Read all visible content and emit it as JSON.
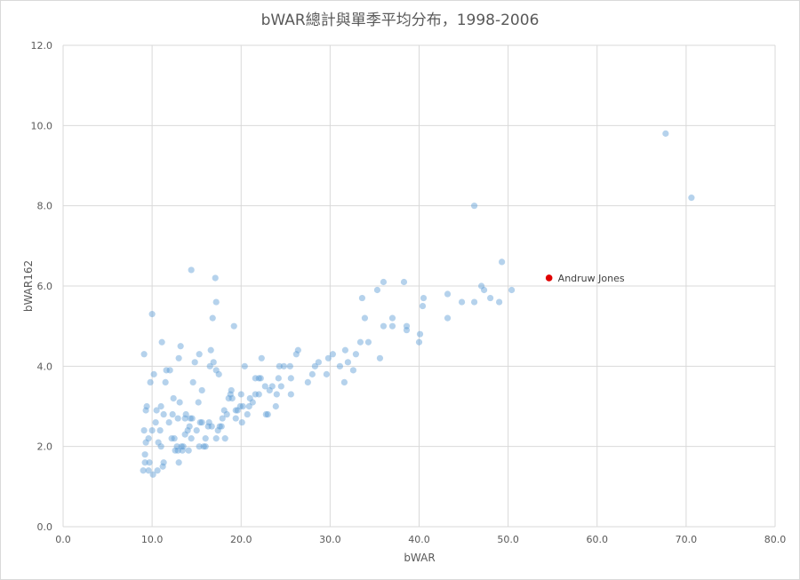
{
  "chart_data": {
    "type": "scatter",
    "title": "bWAR總計與單季平均分布，1998-2006",
    "xlabel": "bWAR",
    "ylabel": "bWAR162",
    "xlim": [
      0,
      80
    ],
    "ylim": [
      0,
      12
    ],
    "x_ticks": [
      "0.0",
      "10.0",
      "20.0",
      "30.0",
      "40.0",
      "50.0",
      "60.0",
      "70.0",
      "80.0"
    ],
    "y_ticks": [
      "0.0",
      "2.0",
      "4.0",
      "6.0",
      "8.0",
      "10.0",
      "12.0"
    ],
    "grid": true,
    "colors": {
      "points": "#5b9bd5",
      "highlight": "#e00000"
    },
    "highlight": {
      "label": "Andruw Jones",
      "x": 54.6,
      "y": 6.2
    },
    "points": [
      [
        67.7,
        9.8
      ],
      [
        70.6,
        8.2
      ],
      [
        46.2,
        8.0
      ],
      [
        49.3,
        6.6
      ],
      [
        50.4,
        5.9
      ],
      [
        49.0,
        5.6
      ],
      [
        48.0,
        5.7
      ],
      [
        47.3,
        5.9
      ],
      [
        47.0,
        6.0
      ],
      [
        46.2,
        5.6
      ],
      [
        44.8,
        5.6
      ],
      [
        43.2,
        5.8
      ],
      [
        43.2,
        5.2
      ],
      [
        40.5,
        5.7
      ],
      [
        40.4,
        5.5
      ],
      [
        40.1,
        4.8
      ],
      [
        40.0,
        4.6
      ],
      [
        38.6,
        5.0
      ],
      [
        38.6,
        4.9
      ],
      [
        38.3,
        6.1
      ],
      [
        37.0,
        5.2
      ],
      [
        37.0,
        5.0
      ],
      [
        36.0,
        6.1
      ],
      [
        35.3,
        5.9
      ],
      [
        36.0,
        5.0
      ],
      [
        35.6,
        4.2
      ],
      [
        34.3,
        4.6
      ],
      [
        33.9,
        5.2
      ],
      [
        33.6,
        5.7
      ],
      [
        33.4,
        4.6
      ],
      [
        32.9,
        4.3
      ],
      [
        32.6,
        3.9
      ],
      [
        32.0,
        4.1
      ],
      [
        31.7,
        4.4
      ],
      [
        31.6,
        3.6
      ],
      [
        31.1,
        4.0
      ],
      [
        30.3,
        4.3
      ],
      [
        29.8,
        4.2
      ],
      [
        29.6,
        3.8
      ],
      [
        28.7,
        4.1
      ],
      [
        28.3,
        4.0
      ],
      [
        28.0,
        3.8
      ],
      [
        27.5,
        3.6
      ],
      [
        26.4,
        4.4
      ],
      [
        26.2,
        4.3
      ],
      [
        25.5,
        4.0
      ],
      [
        25.6,
        3.7
      ],
      [
        25.6,
        3.3
      ],
      [
        24.8,
        4.0
      ],
      [
        24.5,
        3.5
      ],
      [
        24.2,
        3.7
      ],
      [
        24.0,
        3.3
      ],
      [
        23.9,
        3.0
      ],
      [
        23.5,
        3.5
      ],
      [
        23.2,
        3.4
      ],
      [
        23.0,
        2.8
      ],
      [
        22.7,
        3.5
      ],
      [
        22.3,
        4.2
      ],
      [
        22.2,
        3.7
      ],
      [
        22.0,
        3.3
      ],
      [
        21.6,
        3.7
      ],
      [
        21.6,
        3.3
      ],
      [
        21.0,
        3.2
      ],
      [
        20.9,
        3.0
      ],
      [
        20.7,
        2.8
      ],
      [
        20.4,
        4.0
      ],
      [
        20.2,
        3.0
      ],
      [
        20.0,
        3.3
      ],
      [
        19.9,
        3.0
      ],
      [
        19.6,
        2.9
      ],
      [
        19.4,
        2.7
      ],
      [
        19.0,
        3.2
      ],
      [
        18.9,
        3.4
      ],
      [
        18.6,
        3.2
      ],
      [
        18.4,
        2.8
      ],
      [
        18.1,
        2.9
      ],
      [
        17.9,
        2.7
      ],
      [
        17.6,
        2.5
      ],
      [
        17.4,
        2.4
      ],
      [
        17.1,
        6.2
      ],
      [
        17.2,
        5.6
      ],
      [
        16.8,
        5.2
      ],
      [
        16.9,
        4.1
      ],
      [
        16.6,
        4.4
      ],
      [
        16.5,
        4.0
      ],
      [
        16.3,
        2.5
      ],
      [
        16.0,
        2.2
      ],
      [
        15.8,
        2.0
      ],
      [
        15.6,
        3.4
      ],
      [
        15.4,
        2.6
      ],
      [
        15.2,
        3.1
      ],
      [
        15.0,
        2.4
      ],
      [
        14.8,
        4.1
      ],
      [
        14.4,
        6.4
      ],
      [
        14.5,
        2.7
      ],
      [
        14.2,
        2.5
      ],
      [
        14.0,
        2.4
      ],
      [
        13.8,
        2.8
      ],
      [
        13.7,
        2.3
      ],
      [
        13.5,
        2.0
      ],
      [
        13.2,
        4.5
      ],
      [
        13.0,
        4.2
      ],
      [
        12.9,
        2.7
      ],
      [
        12.8,
        2.0
      ],
      [
        12.6,
        1.9
      ],
      [
        12.4,
        3.2
      ],
      [
        12.2,
        2.2
      ],
      [
        12.0,
        3.9
      ],
      [
        11.9,
        2.6
      ],
      [
        11.6,
        3.9
      ],
      [
        11.5,
        3.6
      ],
      [
        11.3,
        2.8
      ],
      [
        11.1,
        4.6
      ],
      [
        11.0,
        3.0
      ],
      [
        10.9,
        2.4
      ],
      [
        10.7,
        2.1
      ],
      [
        10.5,
        2.9
      ],
      [
        10.2,
        3.8
      ],
      [
        10.0,
        5.3
      ],
      [
        10.0,
        2.4
      ],
      [
        9.8,
        3.6
      ],
      [
        9.6,
        2.2
      ],
      [
        9.6,
        1.4
      ],
      [
        9.4,
        3.0
      ],
      [
        9.3,
        2.9
      ],
      [
        9.3,
        2.1
      ],
      [
        9.2,
        1.8
      ],
      [
        9.2,
        1.6
      ],
      [
        9.1,
        4.3
      ],
      [
        9.1,
        2.4
      ],
      [
        9.0,
        1.4
      ],
      [
        10.1,
        1.3
      ],
      [
        10.6,
        1.4
      ],
      [
        11.2,
        1.5
      ],
      [
        11.3,
        1.6
      ],
      [
        13.0,
        1.6
      ],
      [
        12.9,
        1.9
      ],
      [
        13.4,
        1.9
      ],
      [
        14.1,
        1.9
      ],
      [
        15.3,
        2.0
      ],
      [
        16.0,
        2.0
      ],
      [
        17.2,
        2.2
      ],
      [
        18.2,
        2.2
      ],
      [
        17.8,
        2.5
      ],
      [
        16.7,
        2.5
      ],
      [
        15.6,
        2.6
      ],
      [
        14.4,
        2.2
      ],
      [
        13.1,
        3.1
      ],
      [
        12.3,
        2.8
      ],
      [
        13.7,
        2.7
      ],
      [
        14.6,
        3.6
      ],
      [
        15.3,
        4.3
      ],
      [
        17.5,
        3.8
      ],
      [
        17.2,
        3.9
      ],
      [
        19.2,
        5.0
      ],
      [
        22.0,
        3.7
      ],
      [
        24.3,
        4.0
      ],
      [
        21.3,
        3.1
      ],
      [
        20.1,
        2.6
      ],
      [
        19.4,
        2.9
      ],
      [
        18.8,
        3.3
      ],
      [
        22.8,
        2.8
      ],
      [
        16.4,
        2.6
      ],
      [
        14.3,
        2.7
      ],
      [
        12.5,
        2.2
      ],
      [
        11.0,
        2.0
      ],
      [
        10.4,
        2.6
      ],
      [
        9.7,
        1.6
      ],
      [
        13.3,
        2.0
      ]
    ]
  }
}
